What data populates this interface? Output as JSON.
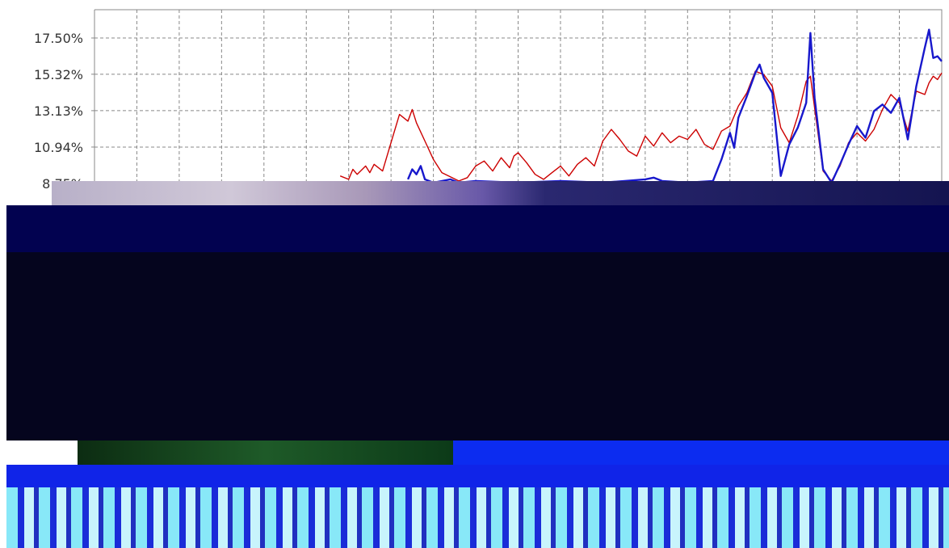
{
  "chart_data": {
    "type": "line",
    "title": "",
    "xlabel": "",
    "ylabel": "",
    "y_ticks": [
      "17.50%",
      "15.32%",
      "13.13%",
      "10.94%",
      "8.75%"
    ],
    "y_tick_values": [
      17.5,
      15.32,
      13.13,
      10.94,
      8.75
    ],
    "ylim": [
      8.75,
      19.0
    ],
    "grid": true,
    "x_range": [
      0,
      100
    ],
    "series": [
      {
        "color": "#cc0000",
        "points": [
          [
            29,
            9.2
          ],
          [
            30,
            9.0
          ],
          [
            30.5,
            9.6
          ],
          [
            31,
            9.3
          ],
          [
            32,
            9.8
          ],
          [
            32.5,
            9.4
          ],
          [
            33,
            9.9
          ],
          [
            34,
            9.5
          ],
          [
            35,
            11.2
          ],
          [
            36,
            12.9
          ],
          [
            37,
            12.5
          ],
          [
            37.5,
            13.2
          ],
          [
            38,
            12.4
          ],
          [
            39,
            11.3
          ],
          [
            40,
            10.2
          ],
          [
            41,
            9.4
          ],
          [
            43,
            8.9
          ],
          [
            44,
            9.1
          ],
          [
            45,
            9.8
          ],
          [
            46,
            10.1
          ],
          [
            47,
            9.5
          ],
          [
            48,
            10.3
          ],
          [
            49,
            9.7
          ],
          [
            49.5,
            10.4
          ],
          [
            50,
            10.6
          ],
          [
            51,
            10.0
          ],
          [
            52,
            9.3
          ],
          [
            53,
            9.0
          ],
          [
            54,
            9.4
          ],
          [
            55,
            9.8
          ],
          [
            56,
            9.2
          ],
          [
            57,
            9.9
          ],
          [
            58,
            10.3
          ],
          [
            59,
            9.8
          ],
          [
            60,
            11.3
          ],
          [
            61,
            12.0
          ],
          [
            62,
            11.4
          ],
          [
            63,
            10.7
          ],
          [
            64,
            10.4
          ],
          [
            65,
            11.6
          ],
          [
            66,
            11.0
          ],
          [
            67,
            11.8
          ],
          [
            68,
            11.2
          ],
          [
            69,
            11.6
          ],
          [
            70,
            11.4
          ],
          [
            71,
            12.0
          ],
          [
            72,
            11.1
          ],
          [
            73,
            10.8
          ],
          [
            74,
            11.9
          ],
          [
            75,
            12.2
          ],
          [
            76,
            13.4
          ],
          [
            77,
            14.2
          ],
          [
            78,
            15.5
          ],
          [
            79,
            15.3
          ],
          [
            80,
            14.6
          ],
          [
            81,
            12.1
          ],
          [
            82,
            11.2
          ],
          [
            83,
            12.8
          ],
          [
            84,
            14.9
          ],
          [
            84.5,
            15.2
          ],
          [
            85,
            13.3
          ],
          [
            86,
            9.5
          ],
          [
            87,
            8.9
          ],
          [
            88,
            9.8
          ],
          [
            89,
            11.2
          ],
          [
            90,
            11.8
          ],
          [
            91,
            11.3
          ],
          [
            92,
            12.0
          ],
          [
            93,
            13.2
          ],
          [
            94,
            14.1
          ],
          [
            95,
            13.6
          ],
          [
            96,
            11.9
          ],
          [
            97,
            14.3
          ],
          [
            98,
            14.1
          ],
          [
            98.5,
            14.8
          ],
          [
            99,
            15.2
          ],
          [
            99.5,
            15.0
          ],
          [
            100,
            15.4
          ]
        ]
      },
      {
        "color": "#1818cc",
        "points": [
          [
            37,
            9.0
          ],
          [
            37.5,
            9.6
          ],
          [
            38,
            9.3
          ],
          [
            38.5,
            9.8
          ],
          [
            39,
            9.0
          ],
          [
            40,
            8.8
          ],
          [
            42,
            9.0
          ],
          [
            43,
            8.8
          ],
          [
            45,
            8.9
          ],
          [
            50,
            8.8
          ],
          [
            55,
            8.9
          ],
          [
            60,
            8.8
          ],
          [
            65,
            9.0
          ],
          [
            66,
            9.1
          ],
          [
            67,
            8.9
          ],
          [
            70,
            8.8
          ],
          [
            73,
            8.9
          ],
          [
            74,
            10.2
          ],
          [
            75,
            11.8
          ],
          [
            75.5,
            10.9
          ],
          [
            76,
            12.7
          ],
          [
            77,
            14.0
          ],
          [
            78,
            15.4
          ],
          [
            78.5,
            15.9
          ],
          [
            79,
            15.1
          ],
          [
            80,
            14.2
          ],
          [
            81,
            9.2
          ],
          [
            82,
            11.1
          ],
          [
            83,
            12.1
          ],
          [
            84,
            13.6
          ],
          [
            84.5,
            17.8
          ],
          [
            85,
            13.9
          ],
          [
            86,
            9.6
          ],
          [
            87,
            8.8
          ],
          [
            88,
            9.9
          ],
          [
            89,
            11.1
          ],
          [
            90,
            12.2
          ],
          [
            91,
            11.5
          ],
          [
            92,
            13.1
          ],
          [
            93,
            13.5
          ],
          [
            94,
            13.0
          ],
          [
            95,
            13.9
          ],
          [
            96,
            11.4
          ],
          [
            97,
            14.6
          ],
          [
            98,
            16.9
          ],
          [
            98.5,
            18.0
          ],
          [
            99,
            16.3
          ],
          [
            99.5,
            16.4
          ],
          [
            100,
            16.1
          ]
        ]
      }
    ]
  }
}
